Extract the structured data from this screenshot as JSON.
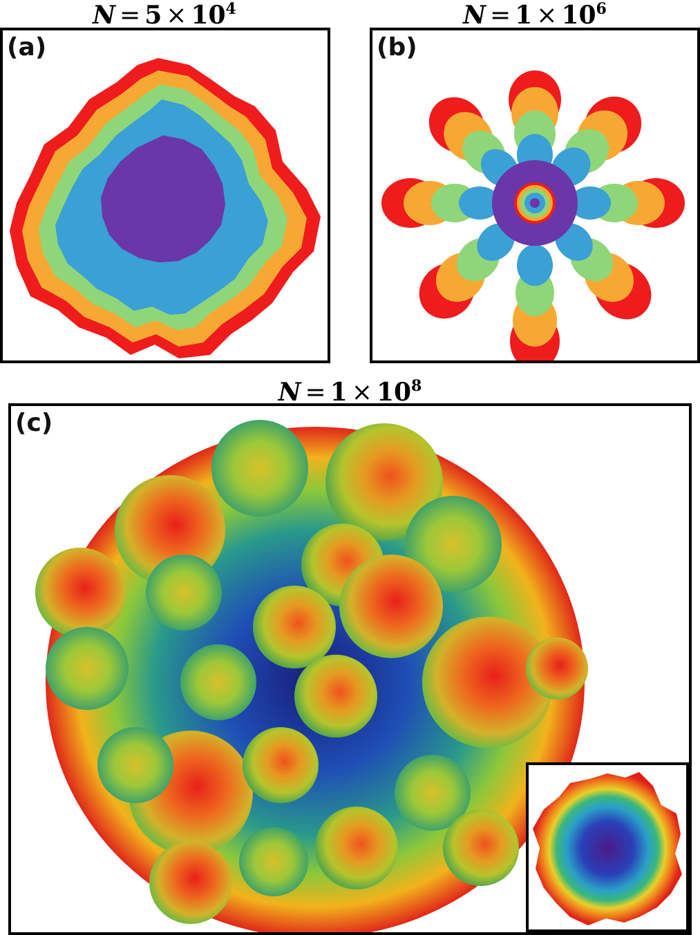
{
  "panels": [
    {
      "label": "(a)",
      "title_n": "N",
      "title_eq": "=",
      "title_num": "5",
      "title_times": "×",
      "title_base": "10",
      "title_exp": "4"
    },
    {
      "label": "(b)",
      "title_n": "N",
      "title_eq": "=",
      "title_num": "1",
      "title_times": "×",
      "title_base": "10",
      "title_exp": "6"
    },
    {
      "label": "(c)",
      "title_n": "N",
      "title_eq": "=",
      "title_num": "1",
      "title_times": "×",
      "title_base": "10",
      "title_exp": "8"
    }
  ],
  "colors": {
    "red": "#ee1c1c",
    "orange": "#f7a833",
    "green": "#8fd67a",
    "blue": "#3aa0d5",
    "purple": "#6a36a8"
  }
}
